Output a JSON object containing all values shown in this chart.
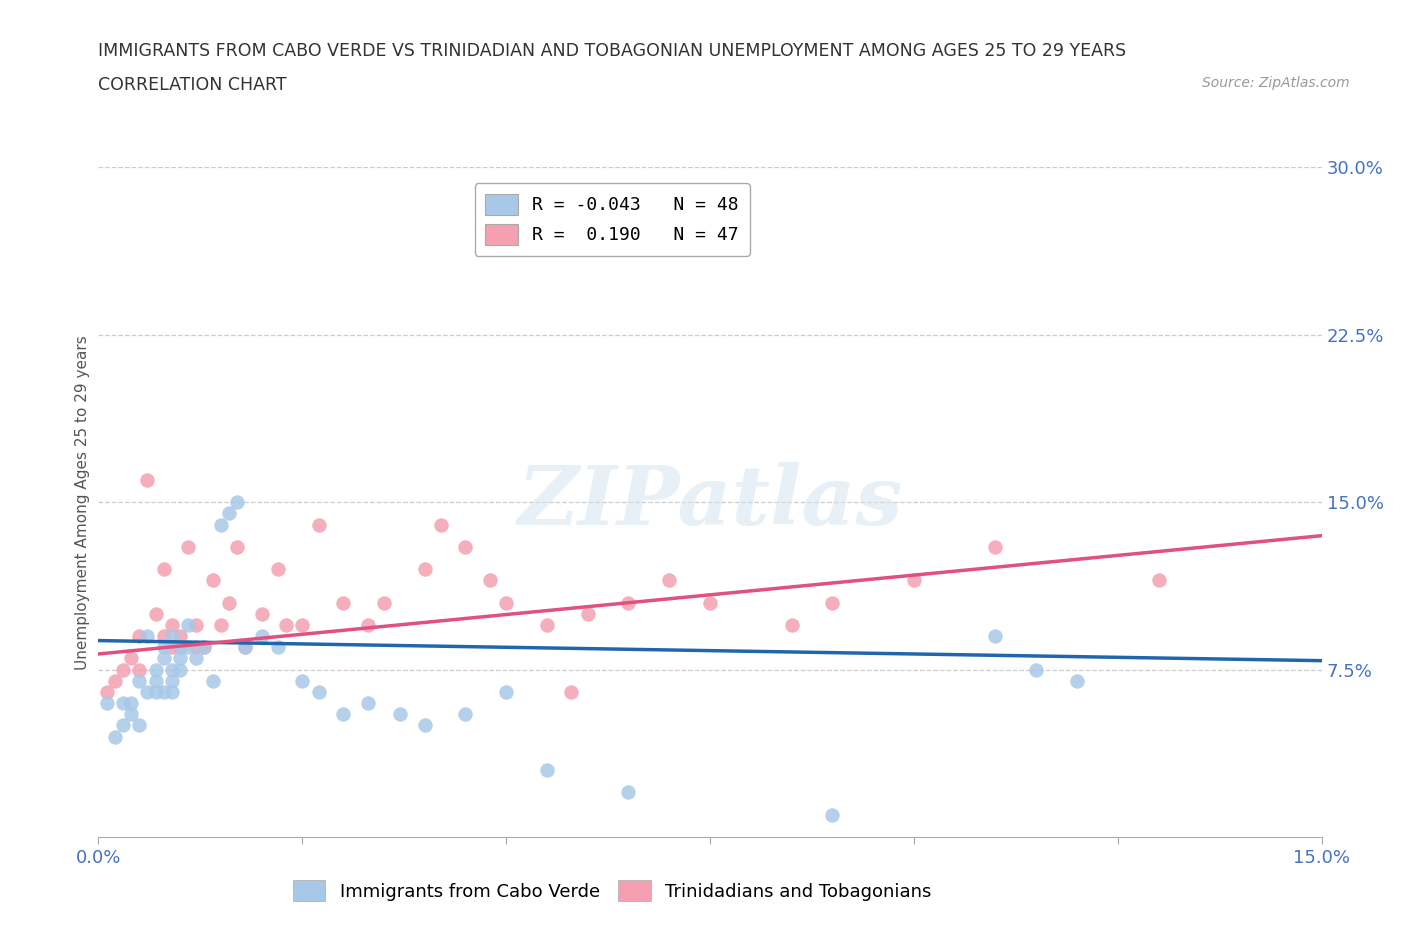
{
  "title": "IMMIGRANTS FROM CABO VERDE VS TRINIDADIAN AND TOBAGONIAN UNEMPLOYMENT AMONG AGES 25 TO 29 YEARS",
  "subtitle": "CORRELATION CHART",
  "source": "Source: ZipAtlas.com",
  "ylabel": "Unemployment Among Ages 25 to 29 years",
  "xmin": 0.0,
  "xmax": 0.15,
  "ymin": 0.0,
  "ymax": 0.3,
  "yticks": [
    0.075,
    0.15,
    0.225,
    0.3
  ],
  "ytick_labels": [
    "7.5%",
    "15.0%",
    "22.5%",
    "30.0%"
  ],
  "xticks": [
    0.0,
    0.025,
    0.05,
    0.075,
    0.1,
    0.125,
    0.15
  ],
  "xtick_labels": [
    "0.0%",
    "",
    "",
    "",
    "",
    "",
    "15.0%"
  ],
  "watermark": "ZIPatlas",
  "legend_entries": [
    {
      "label": "R = -0.043   N = 48",
      "color": "#a8c8e8"
    },
    {
      "label": "R =  0.190   N = 47",
      "color": "#f4a0b0"
    }
  ],
  "series1_color": "#a8c8e8",
  "series2_color": "#f4a0b0",
  "line1_color": "#2166ac",
  "line2_color": "#e05080",
  "cabo_verde_x": [
    0.001,
    0.002,
    0.003,
    0.003,
    0.004,
    0.004,
    0.005,
    0.005,
    0.006,
    0.006,
    0.007,
    0.007,
    0.007,
    0.008,
    0.008,
    0.008,
    0.009,
    0.009,
    0.009,
    0.009,
    0.01,
    0.01,
    0.01,
    0.011,
    0.011,
    0.012,
    0.013,
    0.014,
    0.015,
    0.016,
    0.017,
    0.018,
    0.02,
    0.022,
    0.025,
    0.027,
    0.03,
    0.033,
    0.037,
    0.04,
    0.045,
    0.05,
    0.055,
    0.065,
    0.09,
    0.11,
    0.115,
    0.12
  ],
  "cabo_verde_y": [
    0.06,
    0.045,
    0.05,
    0.06,
    0.055,
    0.06,
    0.07,
    0.05,
    0.09,
    0.065,
    0.07,
    0.075,
    0.065,
    0.065,
    0.08,
    0.085,
    0.07,
    0.075,
    0.065,
    0.09,
    0.08,
    0.085,
    0.075,
    0.085,
    0.095,
    0.08,
    0.085,
    0.07,
    0.14,
    0.145,
    0.15,
    0.085,
    0.09,
    0.085,
    0.07,
    0.065,
    0.055,
    0.06,
    0.055,
    0.05,
    0.055,
    0.065,
    0.03,
    0.02,
    0.01,
    0.09,
    0.075,
    0.07
  ],
  "trini_x": [
    0.001,
    0.002,
    0.003,
    0.004,
    0.005,
    0.005,
    0.006,
    0.007,
    0.008,
    0.008,
    0.009,
    0.009,
    0.01,
    0.01,
    0.011,
    0.012,
    0.012,
    0.013,
    0.014,
    0.015,
    0.016,
    0.017,
    0.018,
    0.02,
    0.022,
    0.023,
    0.025,
    0.027,
    0.03,
    0.033,
    0.035,
    0.04,
    0.042,
    0.045,
    0.048,
    0.05,
    0.055,
    0.058,
    0.06,
    0.065,
    0.07,
    0.075,
    0.085,
    0.09,
    0.1,
    0.11,
    0.13
  ],
  "trini_y": [
    0.065,
    0.07,
    0.075,
    0.08,
    0.075,
    0.09,
    0.16,
    0.1,
    0.09,
    0.12,
    0.085,
    0.095,
    0.085,
    0.09,
    0.13,
    0.085,
    0.095,
    0.085,
    0.115,
    0.095,
    0.105,
    0.13,
    0.085,
    0.1,
    0.12,
    0.095,
    0.095,
    0.14,
    0.105,
    0.095,
    0.105,
    0.12,
    0.14,
    0.13,
    0.115,
    0.105,
    0.095,
    0.065,
    0.1,
    0.105,
    0.115,
    0.105,
    0.095,
    0.105,
    0.115,
    0.13,
    0.115
  ],
  "grid_color": "#cccccc",
  "axis_color": "#aaaaaa",
  "title_color": "#333333",
  "tick_label_color": "#4472c4",
  "legend1_label": "Immigrants from Cabo Verde",
  "legend2_label": "Trinidadians and Tobagonians"
}
